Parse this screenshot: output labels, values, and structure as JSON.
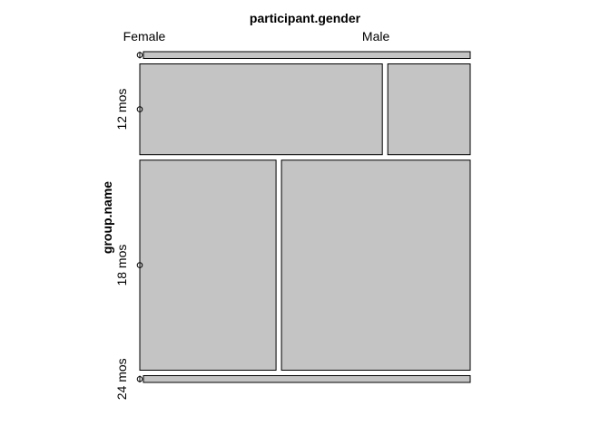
{
  "chart_data": {
    "type": "mosaic",
    "x_variable": "participant.gender",
    "y_variable": "group.name",
    "columns": [
      "Female",
      "Male"
    ],
    "rows": [
      "",
      "12 mos",
      "18 mos",
      "24 mos"
    ],
    "counts": [
      [
        0,
        1
      ],
      [
        10,
        3.4
      ],
      [
        13,
        18
      ],
      [
        0,
        1
      ]
    ],
    "fill_color": "#c4c4c4"
  }
}
